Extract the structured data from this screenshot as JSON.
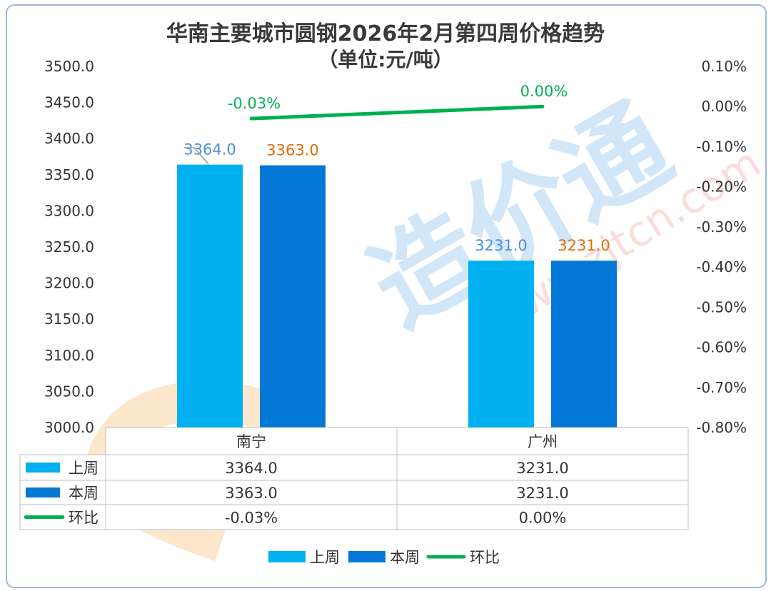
{
  "chart_data": {
    "type": "bar",
    "title": "华南主要城市圆钢2026年2月第四周价格趋势",
    "subtitle": "（单位:元/吨）",
    "categories": [
      "南宁",
      "广州"
    ],
    "series": [
      {
        "name": "上周",
        "values": [
          3364.0,
          3231.0
        ],
        "color": "#00b0f0",
        "label_color": "#4a90d9"
      },
      {
        "name": "本周",
        "values": [
          3363.0,
          3231.0
        ],
        "color": "#0478d7",
        "label_color": "#e36c09"
      }
    ],
    "line_series": {
      "name": "环比",
      "values": [
        -0.03,
        0.0
      ],
      "labels": [
        "-0.03%",
        "0.00%"
      ],
      "color": "#00b050"
    },
    "y_left": {
      "range": [
        3000,
        3500
      ],
      "ticks": [
        "3000.0",
        "3050.0",
        "3100.0",
        "3150.0",
        "3200.0",
        "3250.0",
        "3300.0",
        "3350.0",
        "3400.0",
        "3450.0",
        "3500.0"
      ]
    },
    "y_right": {
      "range": [
        -0.8,
        0.1
      ],
      "ticks": [
        "-0.80%",
        "-0.70%",
        "-0.60%",
        "-0.50%",
        "-0.40%",
        "-0.30%",
        "-0.20%",
        "-0.10%",
        "0.00%",
        "0.10%"
      ]
    },
    "bar_labels": [
      [
        "3364.0",
        "3231.0"
      ],
      [
        "3363.0",
        "3231.0"
      ]
    ],
    "table_rows": [
      {
        "name": "上周",
        "cells": [
          "3364.0",
          "3231.0"
        ]
      },
      {
        "name": "本周",
        "cells": [
          "3363.0",
          "3231.0"
        ]
      },
      {
        "name": "环比",
        "cells": [
          "-0.03%",
          "0.00%"
        ]
      }
    ],
    "legend": [
      "上周",
      "本周",
      "环比"
    ],
    "legend_position": "bottom",
    "grid": false
  },
  "watermark": {
    "text": "造价通",
    "url": "www.zjtcn.com"
  }
}
